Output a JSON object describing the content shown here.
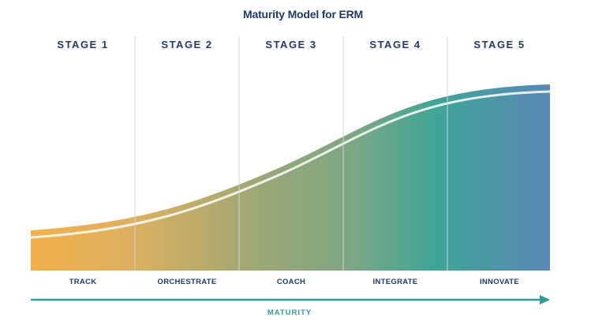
{
  "title": "Maturity Model for ERM",
  "stages": [
    {
      "stage": "STAGE 1",
      "phase": "TRACK"
    },
    {
      "stage": "STAGE 2",
      "phase": "ORCHESTRATE"
    },
    {
      "stage": "STAGE 3",
      "phase": "COACH"
    },
    {
      "stage": "STAGE 4",
      "phase": "INTEGRATE"
    },
    {
      "stage": "STAGE 5",
      "phase": "INNOVATE"
    }
  ],
  "axis_label": "MATURITY",
  "colors": {
    "title": "#1f3a6b",
    "curve_start": "#f2b14a",
    "curve_mid": "#8aa57a",
    "curve_teal": "#3fa597",
    "curve_end": "#5a88b6",
    "arrow": "#2e9c93"
  }
}
